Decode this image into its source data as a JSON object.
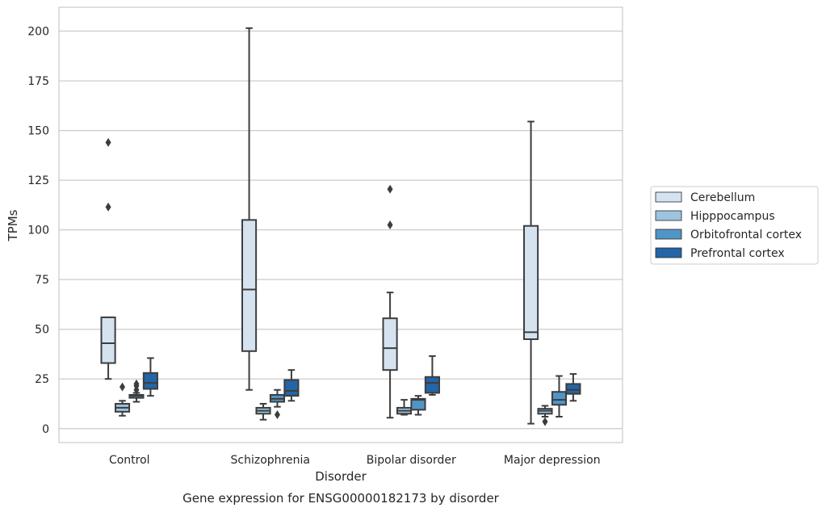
{
  "chart_data": {
    "type": "box",
    "title": "",
    "caption": "Gene expression for ENSG00000182173 by disorder",
    "xlabel": "Disorder",
    "ylabel": "TPMs",
    "ylim": [
      -7,
      212
    ],
    "yticks": [
      0,
      25,
      50,
      75,
      100,
      125,
      150,
      175,
      200
    ],
    "grid": "horizontal",
    "legend_position": "right",
    "categories": [
      "Control",
      "Schizophrenia",
      "Bipolar disorder",
      "Major depression"
    ],
    "series": [
      {
        "name": "Cerebellum",
        "color": "#d5e3f1",
        "boxes": [
          {
            "whislo": 25,
            "q1": 33,
            "med": 43,
            "q3": 56,
            "whishi": 56,
            "fliers": [
              111.5,
              144
            ]
          },
          {
            "whislo": 19.5,
            "q1": 39,
            "med": 70,
            "q3": 105,
            "whishi": 201.5,
            "fliers": []
          },
          {
            "whislo": 5.5,
            "q1": 29.5,
            "med": 40.5,
            "q3": 55.5,
            "whishi": 68.5,
            "fliers": [
              102.5,
              120.5
            ]
          },
          {
            "whislo": 2.5,
            "q1": 45,
            "med": 48.5,
            "q3": 102,
            "whishi": 154.5,
            "fliers": []
          }
        ]
      },
      {
        "name": "Hipppocampus",
        "color": "#9dc3df",
        "boxes": [
          {
            "whislo": 6.5,
            "q1": 8.5,
            "med": 10.5,
            "q3": 12.5,
            "whishi": 14,
            "fliers": [
              21
            ]
          },
          {
            "whislo": 4.5,
            "q1": 7.5,
            "med": 9,
            "q3": 10.5,
            "whishi": 12.5,
            "fliers": []
          },
          {
            "whislo": 7,
            "q1": 7.5,
            "med": 9,
            "q3": 10.5,
            "whishi": 14.5,
            "fliers": []
          },
          {
            "whislo": 6,
            "q1": 7.5,
            "med": 9,
            "q3": 10,
            "whishi": 11.5,
            "fliers": [
              3.5
            ]
          }
        ]
      },
      {
        "name": "Orbitofrontal cortex",
        "color": "#5195c6",
        "boxes": [
          {
            "whislo": 13.5,
            "q1": 15.5,
            "med": 16.5,
            "q3": 17,
            "whishi": 18,
            "fliers": [
              19.5,
              21.5,
              22.5
            ]
          },
          {
            "whislo": 11,
            "q1": 13.5,
            "med": 15,
            "q3": 17,
            "whishi": 19.5,
            "fliers": [
              7
            ]
          },
          {
            "whislo": 7,
            "q1": 9.5,
            "med": 14.5,
            "q3": 15,
            "whishi": 16.5,
            "fliers": []
          },
          {
            "whislo": 6,
            "q1": 12,
            "med": 14.5,
            "q3": 18.5,
            "whishi": 26.5,
            "fliers": []
          }
        ]
      },
      {
        "name": "Prefrontal cortex",
        "color": "#2465a6",
        "boxes": [
          {
            "whislo": 16.5,
            "q1": 20,
            "med": 23,
            "q3": 28,
            "whishi": 35.5,
            "fliers": []
          },
          {
            "whislo": 14,
            "q1": 16.5,
            "med": 19,
            "q3": 24.5,
            "whishi": 29.5,
            "fliers": []
          },
          {
            "whislo": 17,
            "q1": 18,
            "med": 23,
            "q3": 26,
            "whishi": 36.5,
            "fliers": []
          },
          {
            "whislo": 14,
            "q1": 17.5,
            "med": 19.5,
            "q3": 22.5,
            "whishi": 27.5,
            "fliers": []
          }
        ]
      }
    ]
  }
}
